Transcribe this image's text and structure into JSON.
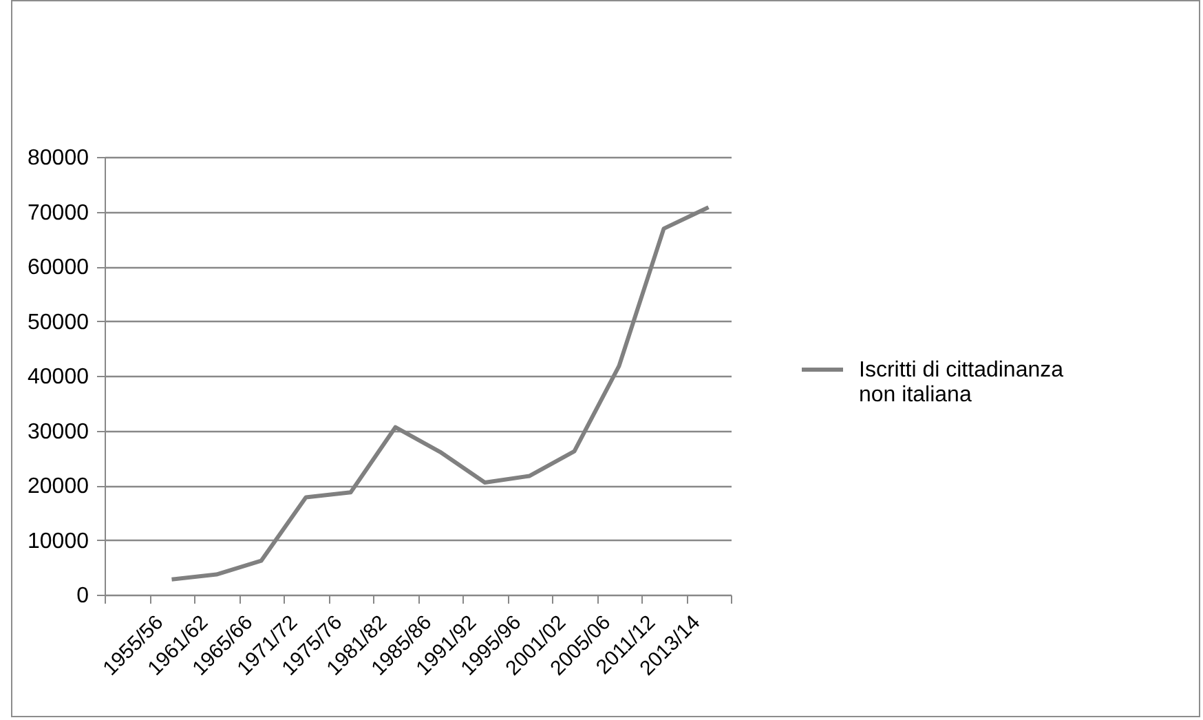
{
  "chart_data": {
    "type": "line",
    "categories": [
      "1955/56",
      "1961/62",
      "1965/66",
      "1971/72",
      "1975/76",
      "1981/82",
      "1985/86",
      "1991/92",
      "1995/96",
      "2001/02",
      "2005/06",
      "2011/12",
      "2013/14",
      null
    ],
    "series": [
      {
        "name": "Iscritti di cittadinanza non italiana",
        "color": "#808080",
        "values": [
          null,
          2800,
          3700,
          6200,
          17800,
          18700,
          30600,
          26100,
          20500,
          21700,
          26200,
          41800,
          66900,
          70800
        ]
      }
    ],
    "ylim": [
      0,
      80000
    ],
    "yticks": [
      0,
      10000,
      20000,
      30000,
      40000,
      50000,
      60000,
      70000,
      80000
    ],
    "grid": "y",
    "legend": "right",
    "marker": "none",
    "line_style": "solid"
  }
}
